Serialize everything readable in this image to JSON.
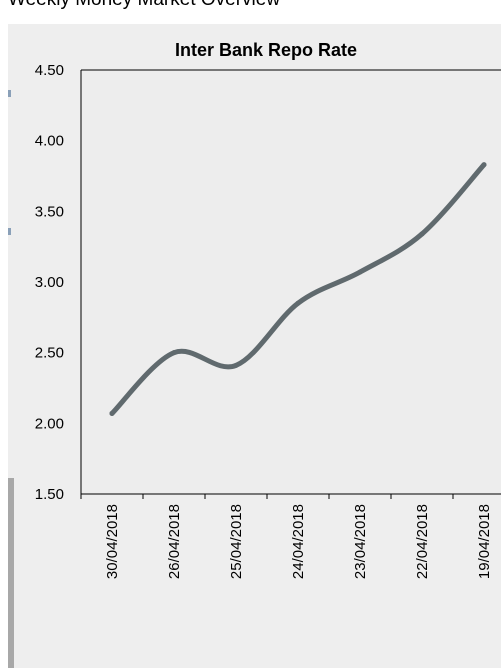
{
  "page": {
    "heading": "Weekly Money Market Overview"
  },
  "colors": {
    "line": "#606a6e",
    "plot_bg": "#ededed",
    "frame_bg": "#eeeeee"
  },
  "chart_data": {
    "type": "line",
    "title": "Inter Bank Repo Rate",
    "xlabel": "",
    "ylabel": "",
    "categories": [
      "30/04/2018",
      "26/04/2018",
      "25/04/2018",
      "24/04/2018",
      "23/04/2018",
      "22/04/2018",
      "19/04/2018"
    ],
    "series": [
      {
        "values": [
          2.07,
          2.5,
          2.41,
          2.85,
          3.07,
          3.34,
          3.83
        ]
      }
    ],
    "ylim": [
      1.5,
      4.5
    ],
    "yticks": [
      "4.50",
      "4.00",
      "3.50",
      "3.00",
      "2.50",
      "2.00",
      "1.50"
    ],
    "grid": false,
    "legend": "none"
  }
}
